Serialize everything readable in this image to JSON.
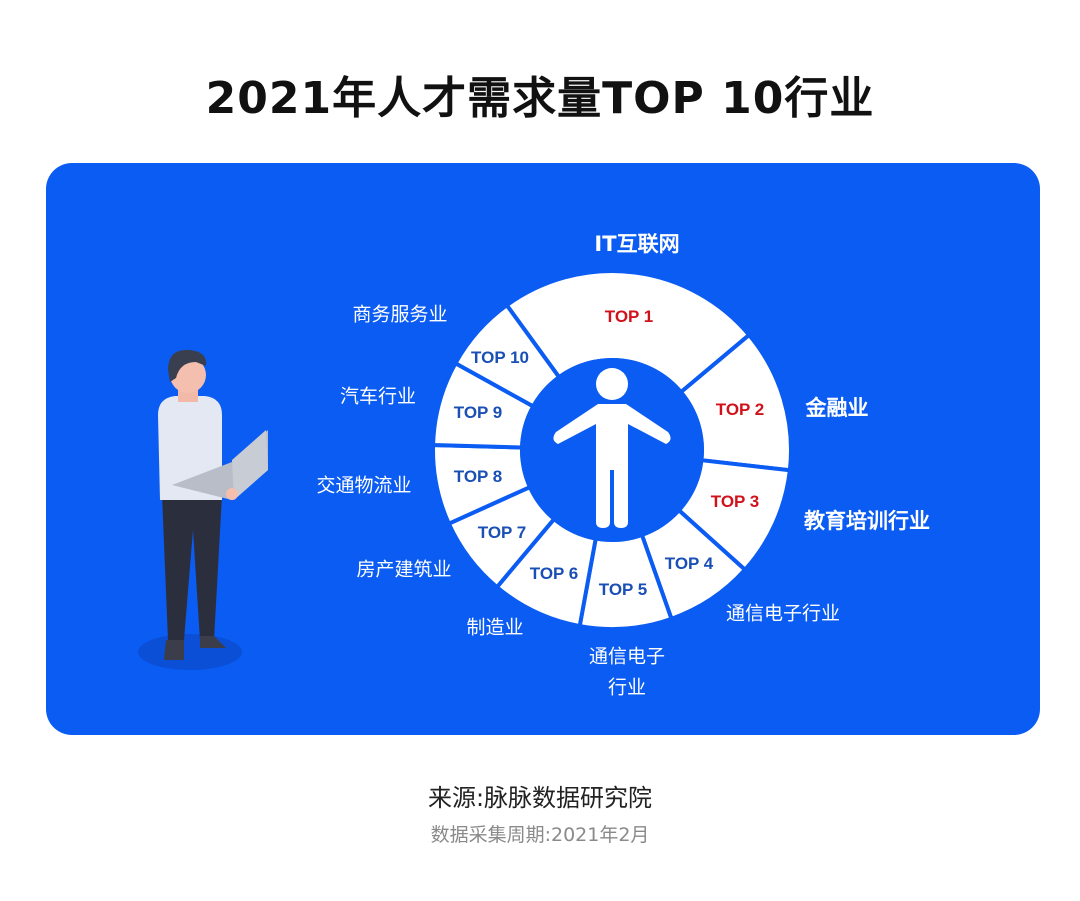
{
  "title": "2021年人才需求量TOP 10行业",
  "colors": {
    "panel": "#0b5cf3",
    "top3_rank": "#d0121b",
    "other_rank": "#1a4fb5",
    "ring": "#ffffff"
  },
  "rankings": [
    {
      "rank": "TOP 1",
      "industry": "IT互联网"
    },
    {
      "rank": "TOP 2",
      "industry": "金融业"
    },
    {
      "rank": "TOP 3",
      "industry": "教育培训行业"
    },
    {
      "rank": "TOP 4",
      "industry": "通信电子行业"
    },
    {
      "rank": "TOP 5",
      "industry_line1": "通信电子",
      "industry_line2": "行业"
    },
    {
      "rank": "TOP 6",
      "industry": "制造业"
    },
    {
      "rank": "TOP 7",
      "industry": "房产建筑业"
    },
    {
      "rank": "TOP 8",
      "industry": "交通物流业"
    },
    {
      "rank": "TOP 9",
      "industry": "汽车行业"
    },
    {
      "rank": "TOP 10",
      "industry": "商务服务业"
    }
  ],
  "icons": [
    "person-icon",
    "man-with-laptop-illustration"
  ],
  "footer": {
    "source": "来源:脉脉数据研究院",
    "period": "数据采集周期:2021年2月"
  }
}
